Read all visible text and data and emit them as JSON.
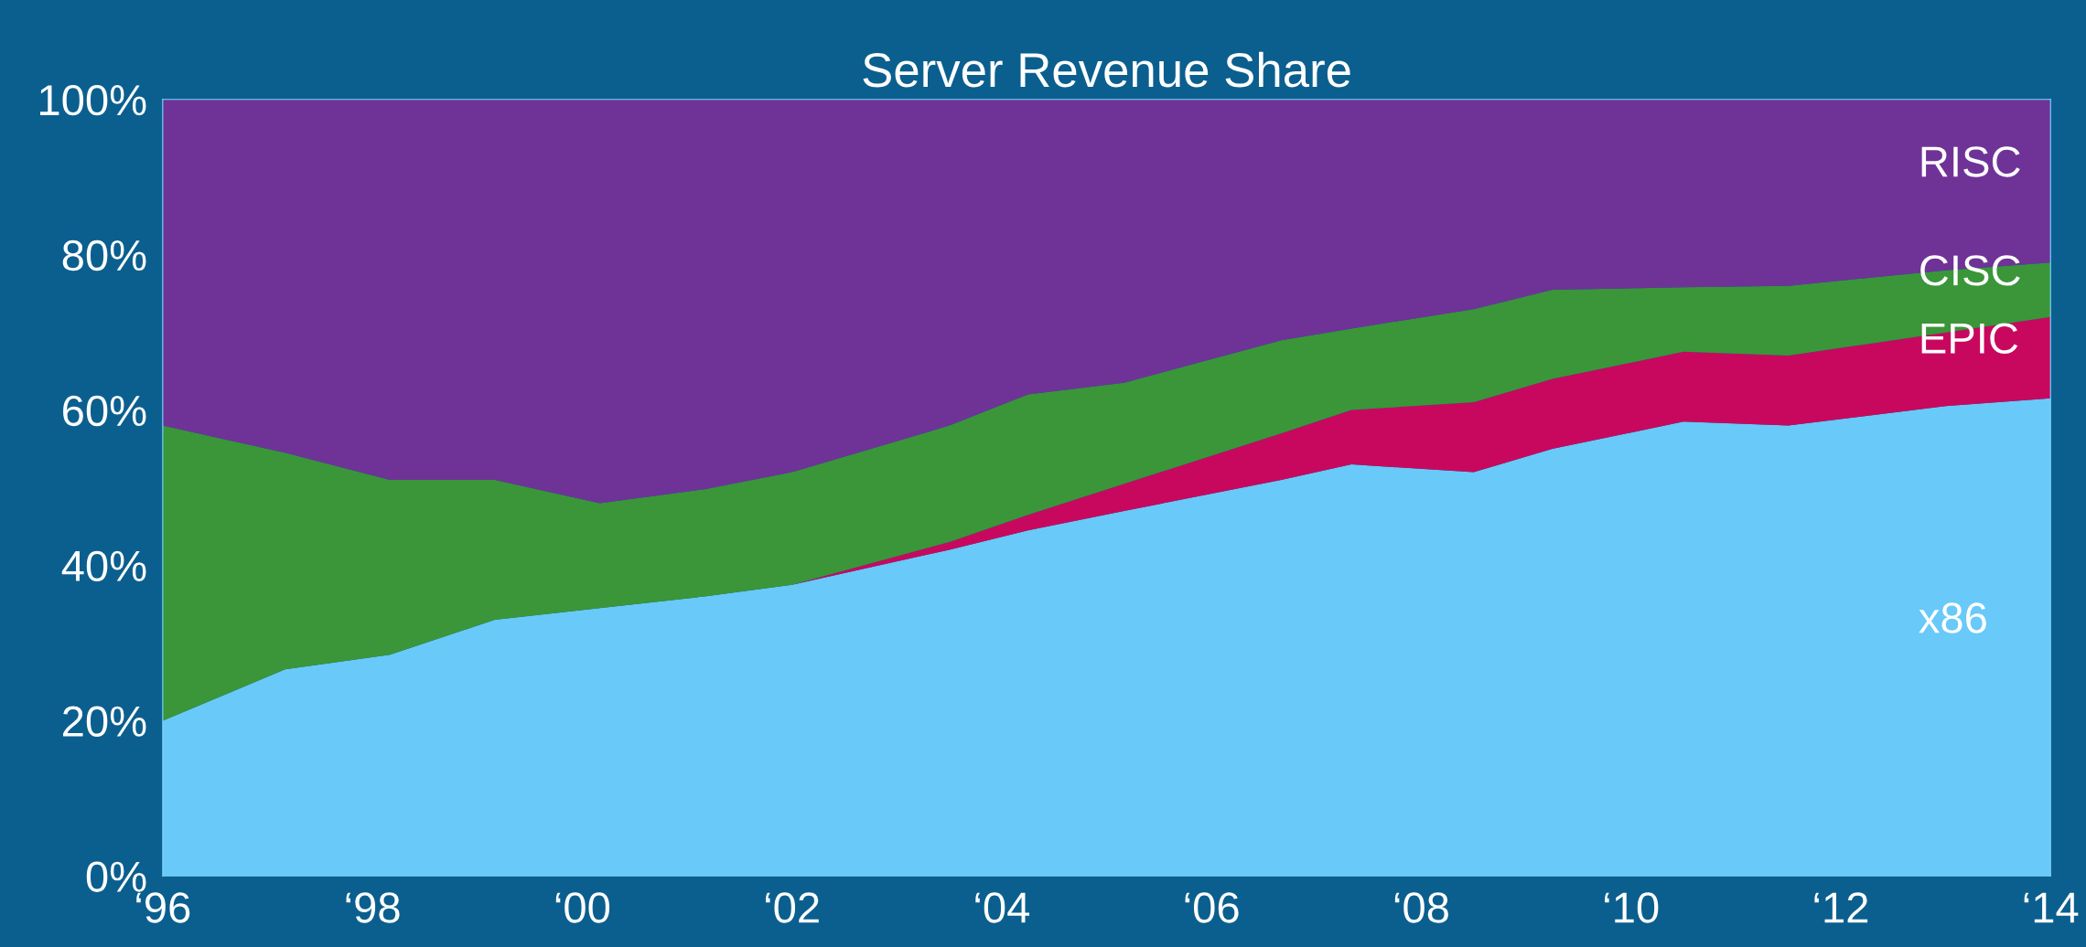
{
  "chart_data": {
    "type": "area",
    "title": "Server Revenue Share",
    "stacked": true,
    "x": [
      "1996",
      "1997-03",
      "1998-03",
      "1999-03",
      "2000-03",
      "2001-03",
      "2002-01",
      "2003-07",
      "2004-04",
      "2005-03",
      "2006-09",
      "2007-05",
      "2008-07",
      "2009-04",
      "2010-07",
      "2011-07",
      "2013-01",
      "2014"
    ],
    "series": [
      {
        "name": "x86",
        "color": "#69c9f8",
        "values": [
          20,
          26.6,
          28.5,
          33,
          34.5,
          36,
          37.5,
          42,
          44.5,
          47,
          51,
          53,
          52,
          55,
          58.5,
          58,
          60.5,
          61.5
        ]
      },
      {
        "name": "EPIC",
        "color": "#c8085f",
        "values": [
          0,
          0,
          0,
          0,
          0,
          0,
          0,
          1,
          2,
          3.5,
          6,
          7,
          9,
          9,
          9,
          9,
          9.5,
          10.5
        ]
      },
      {
        "name": "CISC",
        "color": "#3a9639",
        "values": [
          38,
          27.9,
          22.5,
          18,
          13.5,
          13.8,
          14.5,
          15,
          15.5,
          13,
          12,
          10.5,
          12,
          11.5,
          8.3,
          9,
          8,
          7
        ]
      },
      {
        "name": "RISC",
        "color": "#6f3398",
        "values": [
          42,
          45.5,
          49,
          49,
          52,
          50.2,
          48,
          42,
          38,
          36.5,
          31,
          29.5,
          27,
          24.5,
          24.2,
          24,
          22,
          21
        ]
      }
    ],
    "xlim": [
      "1996",
      "2014"
    ],
    "xticks": [
      {
        "value": "1996",
        "label": "‘96"
      },
      {
        "value": "1998",
        "label": "‘98"
      },
      {
        "value": "2000",
        "label": "‘00"
      },
      {
        "value": "2002",
        "label": "‘02"
      },
      {
        "value": "2004",
        "label": "‘04"
      },
      {
        "value": "2006",
        "label": "‘06"
      },
      {
        "value": "2008",
        "label": "‘08"
      },
      {
        "value": "2010",
        "label": "‘10"
      },
      {
        "value": "2012",
        "label": "‘12"
      },
      {
        "value": "2014",
        "label": "‘14"
      }
    ],
    "ylim": [
      0,
      100
    ],
    "yticks": [
      {
        "value": 0,
        "label": "0%"
      },
      {
        "value": 20,
        "label": "20%"
      },
      {
        "value": 40,
        "label": "40%"
      },
      {
        "value": 60,
        "label": "60%"
      },
      {
        "value": 80,
        "label": "80%"
      },
      {
        "value": 100,
        "label": "100%"
      }
    ],
    "grid": false,
    "legend": false
  }
}
